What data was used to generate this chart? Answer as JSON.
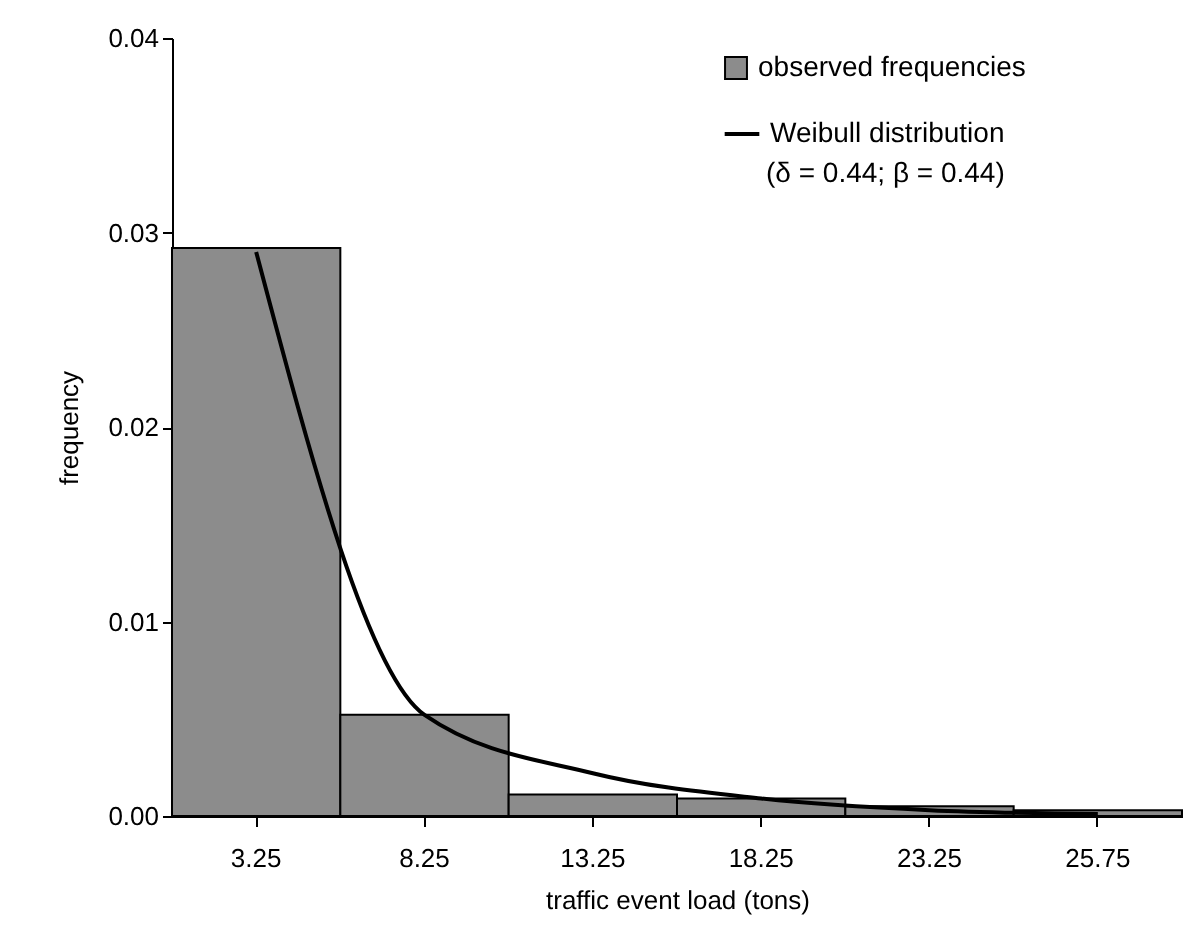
{
  "chart_data": {
    "type": "bar",
    "xlabel": "traffic event load (tons)",
    "ylabel": "frequency",
    "categories": [
      "3.25",
      "8.25",
      "13.25",
      "18.25",
      "23.25",
      "25.75"
    ],
    "series": [
      {
        "name": "observed frequencies",
        "color": "#8c8c8c",
        "values": [
          0.0292,
          0.0052,
          0.0011,
          0.0009,
          0.0005,
          0.0003
        ]
      },
      {
        "name": "Weibull distribution",
        "type": "line",
        "color": "#000000",
        "values": [
          0.029,
          0.0052,
          0.0022,
          0.0009,
          0.0003,
          0.0001
        ]
      }
    ],
    "ylim": [
      0,
      0.04
    ],
    "yticks": [
      {
        "value": 0,
        "label": "0.00"
      },
      {
        "value": 0.01,
        "label": "0.01"
      },
      {
        "value": 0.02,
        "label": "0.02"
      },
      {
        "value": 0.03,
        "label": "0.03"
      },
      {
        "value": 0.04,
        "label": "0.04"
      }
    ],
    "annotations": [
      "(δ = 0.44; β = 0.44)"
    ],
    "grid": false,
    "legend": "top right"
  }
}
